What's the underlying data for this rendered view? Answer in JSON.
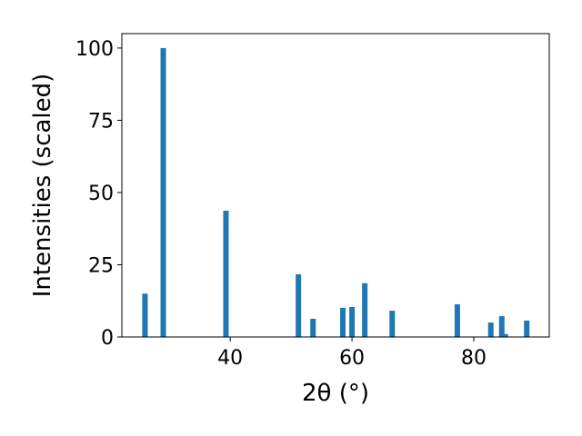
{
  "chart_data": {
    "type": "bar",
    "x": [
      26.0,
      29.0,
      39.3,
      51.2,
      53.6,
      58.5,
      60.0,
      62.1,
      66.6,
      77.3,
      82.8,
      84.6,
      85.2,
      88.7
    ],
    "values": [
      15,
      100,
      43.7,
      21.7,
      6.3,
      10.1,
      10.4,
      18.6,
      9.1,
      11.3,
      5.0,
      7.2,
      1,
      5.7
    ],
    "color": "#1f77b4",
    "xlabel": "2θ (°)",
    "ylabel": "Intensities (scaled)",
    "xlim": [
      22.2,
      92.4
    ],
    "ylim": [
      0,
      105
    ],
    "xticks": [
      40,
      60,
      80
    ],
    "yticks": [
      0,
      25,
      50,
      75,
      100
    ]
  }
}
